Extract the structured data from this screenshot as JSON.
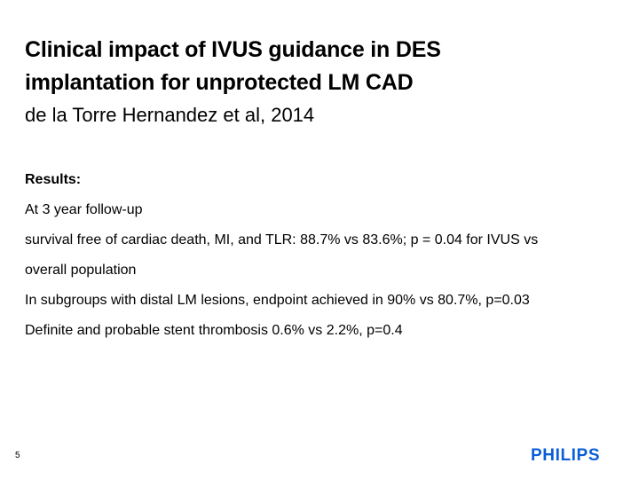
{
  "slide": {
    "title_line1": "Clinical impact of IVUS guidance in DES",
    "title_line2": "implantation for unprotected LM CAD",
    "subtitle": "de la Torre Hernandez et al, 2014",
    "body": {
      "heading": "Results:",
      "lines": [
        "At 3 year follow-up",
        "survival free of cardiac death, MI, and TLR: 88.7% vs 83.6%; p = 0.04 for IVUS vs",
        "overall population",
        "In subgroups with distal LM lesions, endpoint achieved in 90% vs 80.7%, p=0.03",
        "Definite and probable stent thrombosis 0.6% vs 2.2%, p=0.4"
      ]
    },
    "page_number": "5",
    "logo": {
      "text": "PHILIPS",
      "color": "#0b5ed7"
    }
  }
}
